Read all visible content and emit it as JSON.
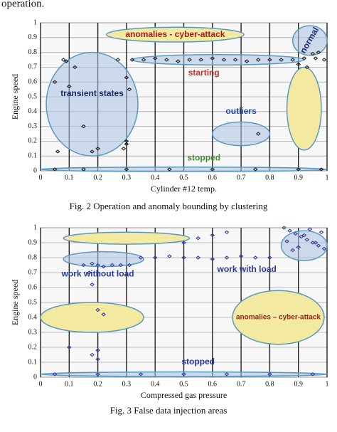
{
  "top_text": "operation.",
  "chart_data": [
    {
      "type": "scatter",
      "caption": "Fig. 2 Operation and anomaly bounding by clustering",
      "x_label": "Cylinder #12 temp.",
      "y_label": "Engine speed",
      "color": "#222222",
      "annotations": [
        "anomalies - cyber-attack",
        "normal",
        "starting",
        "transient states",
        "outliers",
        "stopped"
      ],
      "x": [
        0.05,
        0.08,
        0.09,
        0.1,
        0.12,
        0.15,
        0.18,
        0.06,
        0.2,
        0.27,
        0.29,
        0.3,
        0.3,
        0.31,
        0.3,
        0.32,
        0.36,
        0.4,
        0.44,
        0.48,
        0.52,
        0.56,
        0.6,
        0.64,
        0.68,
        0.72,
        0.76,
        0.8,
        0.84,
        0.88,
        0.92,
        0.96,
        0.99,
        0.76,
        0.9,
        0.93,
        0.95,
        0.97,
        0.05,
        0.15,
        0.3,
        0.45,
        0.6,
        0.75,
        0.9,
        0.98
      ],
      "y": [
        0.6,
        0.75,
        0.74,
        0.57,
        0.7,
        0.3,
        0.13,
        0.13,
        0.15,
        0.75,
        0.15,
        0.18,
        0.63,
        0.55,
        0.2,
        0.75,
        0.75,
        0.76,
        0.75,
        0.74,
        0.75,
        0.75,
        0.76,
        0.75,
        0.75,
        0.74,
        0.75,
        0.75,
        0.75,
        0.75,
        0.76,
        0.76,
        0.75,
        0.25,
        0.72,
        0.7,
        0.79,
        0.8,
        0.01,
        0.01,
        0.01,
        0.01,
        0.01,
        0.01,
        0.01,
        0.01
      ],
      "xlim": [
        0,
        1
      ],
      "ylim": [
        0,
        1
      ],
      "xticks": [
        0,
        0.1,
        0.2,
        0.3,
        0.4,
        0.5,
        0.6,
        0.7,
        0.8,
        0.9,
        1
      ],
      "yticks": [
        0,
        0.1,
        0.2,
        0.3,
        0.4,
        0.5,
        0.6,
        0.7,
        0.8,
        0.9,
        1
      ],
      "grid": true
    },
    {
      "type": "scatter",
      "caption": "Fig. 3 False data injection areas",
      "x_label": "Compressed gas pressure",
      "y_label": "Engine speed",
      "color": "#3a3aa8",
      "annotations": [
        "work without load",
        "work with load",
        "anomalies – cyber-attack",
        "stopped"
      ],
      "x": [
        0.15,
        0.18,
        0.2,
        0.22,
        0.25,
        0.28,
        0.31,
        0.17,
        0.18,
        0.2,
        0.22,
        0.18,
        0.2,
        0.2,
        0.1,
        0.35,
        0.4,
        0.45,
        0.5,
        0.55,
        0.6,
        0.65,
        0.7,
        0.75,
        0.8,
        0.5,
        0.55,
        0.6,
        0.65,
        0.85,
        0.87,
        0.89,
        0.91,
        0.93,
        0.95,
        0.97,
        0.99,
        0.86,
        0.9,
        0.94,
        0.98,
        0.88,
        0.92,
        0.96,
        0.05,
        0.2,
        0.35,
        0.5,
        0.65,
        0.8,
        0.95
      ],
      "y": [
        0.75,
        0.76,
        0.75,
        0.74,
        0.75,
        0.75,
        0.75,
        0.7,
        0.62,
        0.45,
        0.42,
        0.15,
        0.12,
        0.18,
        0.2,
        0.8,
        0.8,
        0.81,
        0.8,
        0.8,
        0.79,
        0.8,
        0.81,
        0.8,
        0.8,
        0.9,
        0.93,
        0.95,
        0.97,
        1,
        0.98,
        0.96,
        0.94,
        0.92,
        0.9,
        0.88,
        0.86,
        0.91,
        0.87,
        0.99,
        0.97,
        0.85,
        0.95,
        0.9,
        0.02,
        0.02,
        0.02,
        0.02,
        0.02,
        0.02,
        0.02
      ],
      "xlim": [
        0,
        1
      ],
      "ylim": [
        0,
        1
      ],
      "xticks": [
        0,
        0.1,
        0.2,
        0.3,
        0.4,
        0.5,
        0.6,
        0.7,
        0.8,
        0.9,
        1
      ],
      "yticks": [
        0,
        0.1,
        0.2,
        0.3,
        0.4,
        0.5,
        0.6,
        0.7,
        0.8,
        0.9,
        1
      ],
      "grid": true
    }
  ]
}
